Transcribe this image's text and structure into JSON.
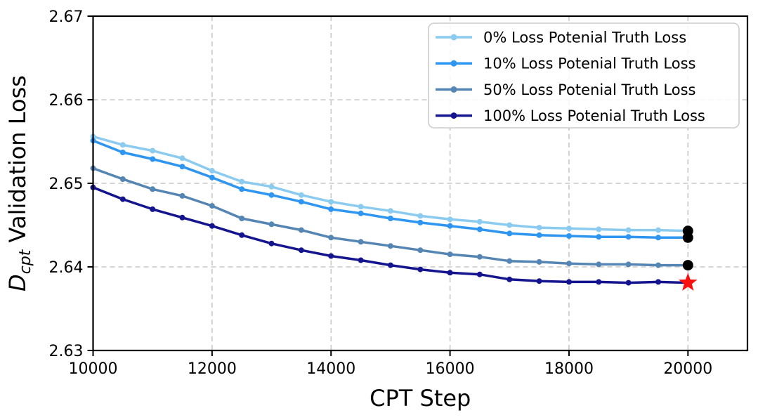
{
  "chart_data": {
    "type": "line",
    "title": "",
    "xlabel": "CPT Step",
    "ylabel": {
      "prefix": "D",
      "subscript": "cpt",
      "suffix": " Validation Loss"
    },
    "xlim": [
      10000,
      21000
    ],
    "ylim": [
      2.63,
      2.67
    ],
    "grid": {
      "show": true,
      "style": "dashed",
      "color": "#c8c8c8"
    },
    "legend": {
      "position": "upper right"
    },
    "xticks": {
      "values": [
        10000,
        12000,
        14000,
        16000,
        18000,
        20000
      ],
      "labels": [
        "10000",
        "12000",
        "14000",
        "16000",
        "18000",
        "20000"
      ]
    },
    "yticks": {
      "values": [
        2.63,
        2.64,
        2.65,
        2.66,
        2.67
      ],
      "labels": [
        "2.63",
        "2.64",
        "2.65",
        "2.66",
        "2.67"
      ]
    },
    "x": [
      10000,
      10500,
      11000,
      11500,
      12000,
      12500,
      13000,
      13500,
      14000,
      14500,
      15000,
      15500,
      16000,
      16500,
      17000,
      17500,
      18000,
      18500,
      19000,
      19500,
      20000
    ],
    "series": [
      {
        "name": "0% Loss Potenial Truth Loss",
        "color": "#8CCBF0",
        "values": [
          2.6556,
          2.6546,
          2.6539,
          2.653,
          2.6515,
          2.6502,
          2.6496,
          2.6486,
          2.6478,
          2.6472,
          2.6467,
          2.6461,
          2.6457,
          2.6454,
          2.645,
          2.6447,
          2.6446,
          2.6445,
          2.6444,
          2.6444,
          2.6443
        ]
      },
      {
        "name": "10% Loss Potenial Truth Loss",
        "color": "#2E96F0",
        "values": [
          2.6551,
          2.6537,
          2.6529,
          2.652,
          2.6507,
          2.6493,
          2.6486,
          2.6478,
          2.6469,
          2.6464,
          2.6458,
          2.6453,
          2.6449,
          2.6445,
          2.644,
          2.6438,
          2.6437,
          2.6436,
          2.6436,
          2.6435,
          2.6435
        ]
      },
      {
        "name": "50% Loss Potenial Truth Loss",
        "color": "#5585B2",
        "values": [
          2.6518,
          2.6505,
          2.6493,
          2.6485,
          2.6473,
          2.6458,
          2.6451,
          2.6444,
          2.6435,
          2.643,
          2.6425,
          2.642,
          2.6415,
          2.6412,
          2.6407,
          2.6406,
          2.6404,
          2.6403,
          2.6403,
          2.6402,
          2.6402
        ]
      },
      {
        "name": "100% Loss Potenial Truth Loss",
        "color": "#14148E",
        "values": [
          2.6495,
          2.6481,
          2.6469,
          2.6459,
          2.6449,
          2.6438,
          2.6428,
          2.642,
          2.6413,
          2.6408,
          2.6402,
          2.6397,
          2.6393,
          2.6391,
          2.6385,
          2.6383,
          2.6382,
          2.6382,
          2.6381,
          2.6382,
          2.6381
        ]
      }
    ],
    "annotations": {
      "end_dots": [
        {
          "x": 20000,
          "y": 2.6443,
          "color": "#000000"
        },
        {
          "x": 20000,
          "y": 2.6435,
          "color": "#000000"
        },
        {
          "x": 20000,
          "y": 2.6402,
          "color": "#000000"
        }
      ],
      "star": {
        "x": 20000,
        "y": 2.6381,
        "color": "#FA0F0F"
      }
    }
  }
}
